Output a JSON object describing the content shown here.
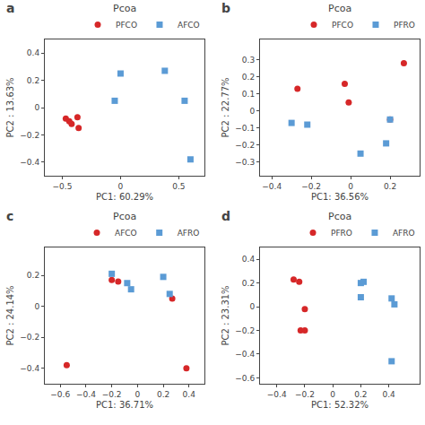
{
  "chart_data": [
    {
      "type": "scatter",
      "title": "Pcoa",
      "annotations": [
        "a"
      ],
      "xlabel": "PC1: 60.29%",
      "ylabel": "PC2 : 13.63%",
      "series": [
        {
          "name": "PFCO",
          "color": "#d62728",
          "marker": "circle",
          "x": [
            -0.47,
            -0.44,
            -0.42,
            -0.37,
            -0.36
          ],
          "values": [
            -0.08,
            -0.1,
            -0.12,
            -0.07,
            -0.15
          ]
        },
        {
          "name": "AFCO",
          "color": "#5b9bd5",
          "marker": "square",
          "x": [
            -0.05,
            0.0,
            0.38,
            0.55,
            0.6
          ],
          "values": [
            0.05,
            0.25,
            0.27,
            0.05,
            -0.38
          ]
        }
      ],
      "xlim": [
        -0.65,
        0.72
      ],
      "ylim": [
        -0.5,
        0.5
      ],
      "xticks": [
        -0.5,
        0.0,
        0.5
      ],
      "yticks": [
        -0.4,
        -0.2,
        0.0,
        0.2,
        0.4
      ],
      "grid": false,
      "legend": "upper right"
    },
    {
      "type": "scatter",
      "title": "Pcoa",
      "annotations": [
        "b"
      ],
      "xlabel": "PC1: 36.56%",
      "ylabel": "PC2 : 22.77%",
      "series": [
        {
          "name": "PFCO",
          "color": "#d62728",
          "marker": "circle",
          "x": [
            -0.27,
            -0.03,
            -0.01,
            0.2,
            0.27
          ],
          "values": [
            0.13,
            0.16,
            0.05,
            -0.05,
            0.28
          ]
        },
        {
          "name": "PFRO",
          "color": "#5b9bd5",
          "marker": "square",
          "x": [
            -0.3,
            -0.22,
            0.05,
            0.18,
            0.2
          ],
          "values": [
            -0.07,
            -0.08,
            -0.25,
            -0.19,
            -0.05
          ]
        }
      ],
      "xlim": [
        -0.46,
        0.35
      ],
      "ylim": [
        -0.38,
        0.42
      ],
      "xticks": [
        -0.4,
        -0.2,
        0.0,
        0.2
      ],
      "yticks": [
        -0.3,
        -0.2,
        -0.1,
        0.0,
        0.1,
        0.2,
        0.3
      ],
      "grid": false,
      "legend": "upper right"
    },
    {
      "type": "scatter",
      "title": "Pcoa",
      "annotations": [
        "c"
      ],
      "xlabel": "PC1: 36.71%",
      "ylabel": "PC2 : 24.14%",
      "series": [
        {
          "name": "AFCO",
          "color": "#d62728",
          "marker": "circle",
          "x": [
            -0.55,
            -0.2,
            -0.15,
            0.27,
            0.38
          ],
          "values": [
            -0.38,
            0.17,
            0.16,
            0.05,
            -0.4
          ]
        },
        {
          "name": "AFRO",
          "color": "#5b9bd5",
          "marker": "square",
          "x": [
            -0.2,
            -0.08,
            -0.05,
            0.2,
            0.25
          ],
          "values": [
            0.21,
            0.15,
            0.11,
            0.19,
            0.08
          ]
        }
      ],
      "xlim": [
        -0.72,
        0.52
      ],
      "ylim": [
        -0.5,
        0.38
      ],
      "xticks": [
        -0.6,
        -0.4,
        -0.2,
        0.0,
        0.2,
        0.4
      ],
      "yticks": [
        -0.4,
        -0.2,
        0.0,
        0.2
      ],
      "grid": false,
      "legend": "upper right"
    },
    {
      "type": "scatter",
      "title": "Pcoa",
      "annotations": [
        "d"
      ],
      "xlabel": "PC1: 52.32%",
      "ylabel": "PC2 : 23.31%",
      "series": [
        {
          "name": "PFRO",
          "color": "#d62728",
          "marker": "circle",
          "x": [
            -0.28,
            -0.24,
            -0.2,
            -0.23,
            -0.2
          ],
          "values": [
            0.23,
            0.21,
            -0.02,
            -0.2,
            -0.2
          ]
        },
        {
          "name": "AFRO",
          "color": "#5b9bd5",
          "marker": "square",
          "x": [
            0.2,
            0.22,
            0.2,
            0.42,
            0.44,
            0.42
          ],
          "values": [
            0.2,
            0.21,
            0.08,
            0.07,
            0.02,
            -0.46
          ]
        }
      ],
      "xlim": [
        -0.52,
        0.62
      ],
      "ylim": [
        -0.65,
        0.5
      ],
      "xticks": [
        -0.4,
        -0.2,
        0.0,
        0.2,
        0.4
      ],
      "yticks": [
        -0.6,
        -0.4,
        -0.2,
        0.0,
        0.2,
        0.4
      ],
      "grid": false,
      "legend": "upper right"
    }
  ]
}
